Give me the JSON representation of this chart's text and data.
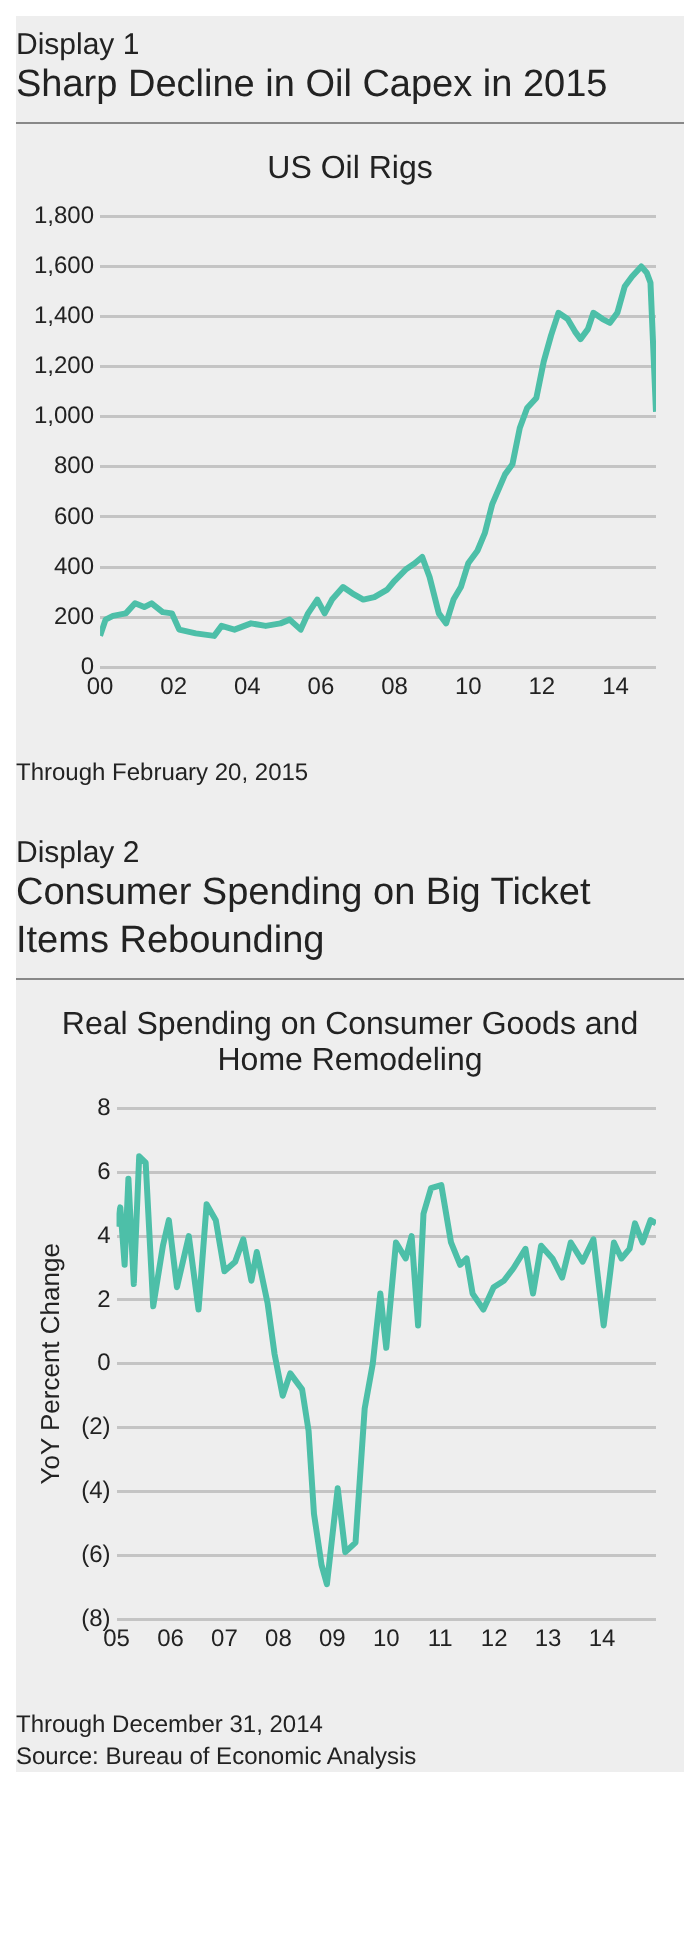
{
  "chart_data": [
    {
      "type": "line",
      "title": "Sharp Decline in Oil Capex in 2015",
      "subtitle": "US Oil Rigs",
      "annotations": [
        "Display 1",
        "Through February 20, 2015"
      ],
      "x": [
        2000,
        2000.15,
        2000.35,
        2000.7,
        2000.95,
        2001.2,
        2001.4,
        2001.7,
        2001.95,
        2002.15,
        2002.6,
        2003.1,
        2003.3,
        2003.65,
        2004.1,
        2004.5,
        2004.9,
        2005.15,
        2005.45,
        2005.65,
        2005.9,
        2006.1,
        2006.3,
        2006.6,
        2006.85,
        2007.15,
        2007.45,
        2007.8,
        2008.0,
        2008.3,
        2008.55,
        2008.75,
        2008.95,
        2009.2,
        2009.4,
        2009.6,
        2009.8,
        2010.0,
        2010.25,
        2010.45,
        2010.65,
        2011.0,
        2011.2,
        2011.4,
        2011.6,
        2011.85,
        2012.05,
        2012.25,
        2012.45,
        2012.7,
        2012.9,
        2013.05,
        2013.25,
        2013.4,
        2013.65,
        2013.85,
        2014.05,
        2014.25,
        2014.45,
        2014.7,
        2014.85,
        2014.95,
        2015.1
      ],
      "series": [
        {
          "color": "#4dbfa8",
          "values": [
            125,
            190,
            205,
            215,
            255,
            240,
            255,
            220,
            215,
            150,
            135,
            125,
            165,
            150,
            175,
            165,
            175,
            190,
            150,
            215,
            270,
            215,
            270,
            320,
            295,
            270,
            280,
            310,
            345,
            390,
            415,
            440,
            360,
            215,
            175,
            270,
            320,
            415,
            465,
            535,
            650,
            770,
            810,
            955,
            1035,
            1075,
            1220,
            1325,
            1415,
            1390,
            1340,
            1310,
            1350,
            1415,
            1390,
            1375,
            1415,
            1520,
            1560,
            1600,
            1575,
            1535,
            1020
          ]
        }
      ],
      "xlim": [
        2000,
        2015.1
      ],
      "xticks": [
        {
          "value": 2000,
          "label": "00"
        },
        {
          "value": 2002,
          "label": "02"
        },
        {
          "value": 2004,
          "label": "04"
        },
        {
          "value": 2006,
          "label": "06"
        },
        {
          "value": 2008,
          "label": "08"
        },
        {
          "value": 2010,
          "label": "10"
        },
        {
          "value": 2012,
          "label": "12"
        },
        {
          "value": 2014,
          "label": "14"
        }
      ],
      "ylim": [
        0,
        1800
      ],
      "yticks": [
        0,
        200,
        400,
        600,
        800,
        {
          "value": 1000,
          "label": "1,000"
        },
        {
          "value": 1200,
          "label": "1,200"
        },
        {
          "value": 1400,
          "label": "1,400"
        },
        {
          "value": 1600,
          "label": "1,600"
        },
        {
          "value": 1800,
          "label": "1,800"
        }
      ],
      "grid": "y"
    },
    {
      "type": "line",
      "title": "Consumer Spending on Big Ticket Items Rebounding",
      "subtitle": "Real Spending on Consumer Goods and Home Remodeling",
      "ylabel": "YoY Percent Change",
      "annotations": [
        "Display 2",
        "Through December 31, 2014",
        "Source: Bureau of Economic Analysis"
      ],
      "x": [
        2005.0,
        2005.07,
        2005.15,
        2005.22,
        2005.32,
        2005.42,
        2005.54,
        2005.68,
        2005.86,
        2005.97,
        2006.12,
        2006.34,
        2006.52,
        2006.67,
        2006.84,
        2007.0,
        2007.2,
        2007.35,
        2007.5,
        2007.6,
        2007.8,
        2007.93,
        2008.08,
        2008.22,
        2008.44,
        2008.56,
        2008.66,
        2008.8,
        2008.9,
        2009.1,
        2009.24,
        2009.43,
        2009.6,
        2009.75,
        2009.89,
        2010.0,
        2010.18,
        2010.36,
        2010.47,
        2010.59,
        2010.69,
        2010.83,
        2011.02,
        2011.2,
        2011.37,
        2011.49,
        2011.6,
        2011.8,
        2011.99,
        2012.18,
        2012.36,
        2012.58,
        2012.72,
        2012.87,
        2013.08,
        2013.26,
        2013.42,
        2013.64,
        2013.84,
        2014.03,
        2014.22,
        2014.36,
        2014.51,
        2014.61,
        2014.75,
        2014.9,
        2015.0
      ],
      "series": [
        {
          "color": "#4dbfa8",
          "values": [
            4.3,
            4.9,
            3.1,
            5.8,
            2.5,
            6.5,
            6.3,
            1.8,
            3.7,
            4.5,
            2.4,
            4.0,
            1.7,
            5.0,
            4.5,
            2.9,
            3.2,
            3.9,
            2.6,
            3.5,
            1.9,
            0.3,
            -1.0,
            -0.3,
            -0.8,
            -2.1,
            -4.7,
            -6.3,
            -6.9,
            -3.9,
            -5.9,
            -5.6,
            -1.4,
            0,
            2.2,
            0.5,
            3.8,
            3.3,
            4.0,
            1.2,
            4.7,
            5.5,
            5.6,
            3.8,
            3.1,
            3.3,
            2.2,
            1.7,
            2.4,
            2.6,
            3.0,
            3.6,
            2.2,
            3.7,
            3.3,
            2.7,
            3.8,
            3.2,
            3.9,
            1.2,
            3.8,
            3.3,
            3.6,
            4.4,
            3.8,
            4.5,
            4.4
          ]
        }
      ],
      "xlim": [
        2005,
        2015
      ],
      "xticks": [
        {
          "value": 2005,
          "label": "05"
        },
        {
          "value": 2006,
          "label": "06"
        },
        {
          "value": 2007,
          "label": "07"
        },
        {
          "value": 2008,
          "label": "08"
        },
        {
          "value": 2009,
          "label": "09"
        },
        {
          "value": 2010,
          "label": "10"
        },
        {
          "value": 2011,
          "label": "11"
        },
        {
          "value": 2012,
          "label": "12"
        },
        {
          "value": 2013,
          "label": "13"
        },
        {
          "value": 2014,
          "label": "14"
        }
      ],
      "ylim": [
        -8,
        8
      ],
      "yticks": [
        {
          "value": -8,
          "label": "(8)"
        },
        {
          "value": -6,
          "label": "(6)"
        },
        {
          "value": -4,
          "label": "(4)"
        },
        {
          "value": -2,
          "label": "(2)"
        },
        0,
        2,
        4,
        6,
        8
      ],
      "grid": "y"
    }
  ]
}
